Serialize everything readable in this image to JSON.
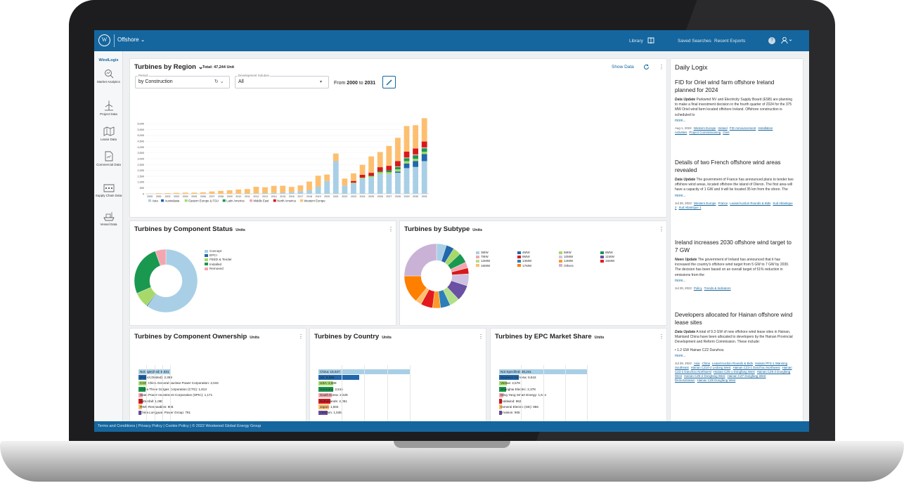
{
  "header": {
    "app_name": "Offshore ⌄",
    "logo": "W",
    "library": "Library",
    "saved_searches": "Saved Searches",
    "recent_exports": "Recent Exports",
    "help": "?"
  },
  "sidebar": {
    "title": "WindLogix",
    "items": [
      {
        "label": "Market Analytics",
        "icon": "search-chart-icon"
      },
      {
        "label": "Project Data",
        "icon": "turbine-icon"
      },
      {
        "label": "Lease Data",
        "icon": "map-icon"
      },
      {
        "label": "Commercial Data",
        "icon": "document-icon"
      },
      {
        "label": "Supply Chain Data",
        "icon": "factory-icon"
      },
      {
        "label": "Vessel Data",
        "icon": "ship-icon"
      }
    ]
  },
  "region_panel": {
    "title": "Turbines by Region ⌄",
    "total": "Total: 47,244 Unit",
    "show_data": "Show Data",
    "period_label": "Period",
    "period_value": "by Construction",
    "dev_label": "Development Solution",
    "dev_value": "All",
    "range_prefix": "From",
    "range_from": "2000",
    "range_to": "2031",
    "range_mid": "to"
  },
  "chart_data": [
    {
      "type": "bar",
      "title": "Turbines by Region",
      "stacked": true,
      "categories": [
        "2000",
        "2001",
        "2002",
        "2003",
        "2004",
        "2005",
        "2006",
        "2007",
        "2008",
        "2009",
        "2010",
        "2011",
        "2012",
        "2013",
        "2014",
        "2015",
        "2016",
        "2017",
        "2018",
        "2019",
        "2020",
        "2021",
        "2022",
        "2023",
        "2024",
        "2025",
        "2026",
        "2027",
        "2028",
        "2029",
        "2030",
        "2031"
      ],
      "ylim": [
        0,
        6500
      ],
      "yticks": [
        "0",
        "500",
        "1,000",
        "1,500",
        "2,000",
        "2,500",
        "3,000",
        "3,500",
        "4,000",
        "4,500",
        "5,000",
        "5,500",
        "6,000"
      ],
      "legend_position": "bottom",
      "series": [
        {
          "name": "Asia",
          "color": "#a8cfe6",
          "values": [
            0,
            0,
            0,
            0,
            0,
            0,
            0,
            0,
            0,
            0,
            20,
            30,
            40,
            60,
            80,
            90,
            140,
            220,
            300,
            600,
            1100,
            2800,
            700,
            900,
            1300,
            1400,
            1700,
            1700,
            1800,
            2200,
            2300,
            2800
          ]
        },
        {
          "name": "Australasia",
          "color": "#2167ac",
          "values": [
            0,
            0,
            0,
            0,
            0,
            0,
            0,
            0,
            0,
            0,
            0,
            0,
            0,
            0,
            0,
            0,
            0,
            0,
            0,
            0,
            0,
            0,
            0,
            0,
            0,
            0,
            0,
            0,
            100,
            400,
            500,
            600
          ]
        },
        {
          "name": "Eastern Europe & FSU",
          "color": "#a6d96a",
          "values": [
            0,
            0,
            0,
            0,
            0,
            0,
            0,
            0,
            0,
            0,
            0,
            0,
            0,
            0,
            0,
            0,
            0,
            0,
            0,
            0,
            0,
            0,
            0,
            50,
            80,
            100,
            150,
            150,
            200,
            200,
            200,
            200
          ]
        },
        {
          "name": "Latin America",
          "color": "#1a9850",
          "values": [
            0,
            0,
            0,
            0,
            0,
            0,
            0,
            0,
            0,
            0,
            0,
            0,
            0,
            0,
            0,
            0,
            0,
            0,
            0,
            0,
            0,
            0,
            0,
            0,
            0,
            50,
            80,
            150,
            200,
            250,
            300,
            300
          ]
        },
        {
          "name": "Middle East",
          "color": "#f4a6b0",
          "values": [
            0,
            0,
            0,
            0,
            0,
            0,
            0,
            0,
            0,
            0,
            0,
            0,
            0,
            0,
            0,
            0,
            0,
            0,
            0,
            0,
            0,
            0,
            0,
            0,
            0,
            0,
            0,
            0,
            50,
            60,
            80,
            80
          ]
        },
        {
          "name": "North America",
          "color": "#d7191c",
          "values": [
            0,
            0,
            0,
            0,
            0,
            0,
            0,
            0,
            0,
            0,
            0,
            0,
            0,
            0,
            0,
            0,
            0,
            0,
            0,
            0,
            0,
            0,
            0,
            150,
            250,
            250,
            350,
            400,
            450,
            500,
            500,
            500
          ]
        },
        {
          "name": "Western Europe",
          "color": "#fdbf6f",
          "values": [
            10,
            50,
            60,
            80,
            100,
            100,
            120,
            200,
            250,
            300,
            350,
            380,
            560,
            500,
            600,
            600,
            450,
            500,
            750,
            950,
            550,
            650,
            600,
            650,
            850,
            1400,
            1300,
            1700,
            2000,
            2200,
            2000,
            2000
          ]
        }
      ]
    },
    {
      "type": "pie",
      "title": "Turbines by Component Status",
      "labels": [
        "Concept",
        "EPCI",
        "FEED & Tender",
        "Installed",
        "Removed"
      ],
      "values": [
        60,
        0.5,
        8,
        26,
        5.5
      ],
      "colors": [
        "#a8cfe6",
        "#2167ac",
        "#a6d96a",
        "#1a9850",
        "#f4a6b0"
      ]
    },
    {
      "type": "pie",
      "title": "Turbines by Subtype",
      "labels": [
        "3MW",
        "4MW",
        "5MW",
        "6MW",
        "7MW",
        "8MW",
        "10MW",
        "11MW",
        "12MW",
        "13MW",
        "14MW",
        "15MW",
        "16MW",
        "17MW",
        "Others"
      ],
      "values": [
        5,
        4,
        4,
        5,
        3,
        3,
        6,
        8,
        5,
        5,
        4,
        6,
        3,
        14,
        25
      ],
      "colors": [
        "#a8cfe6",
        "#2167ac",
        "#a6d96a",
        "#1a9850",
        "#f4a6b0",
        "#d7191c",
        "#cfc2e0",
        "#6a51a3",
        "#b2df8a",
        "#2c7fb8",
        "#fb9a29",
        "#e31a1c",
        "#fdbf6f",
        "#ff7f00",
        "#cab2d6"
      ]
    },
    {
      "type": "bar",
      "orientation": "horizontal",
      "title": "Turbines by Component Ownership",
      "categories": [
        "Not Specified",
        "Ørsted (Orsted)",
        "CGN China General Nuclear Power Corporation",
        "China Three Gorges Corporation (CTG)",
        "State Power Investment Corporation (SPIC)",
        "Vattenfall",
        "RWE Renewables",
        "China Longyuan Power Group"
      ],
      "values": [
        8531,
        2368,
        2044,
        1813,
        1171,
        1080,
        966,
        791
      ]
    },
    {
      "type": "bar",
      "orientation": "horizontal",
      "title": "Turbines by Country",
      "categories": [
        "China",
        "UK",
        "USA",
        "Germany",
        "South Korea",
        "Netherlands",
        "Japan",
        "Vietnam"
      ],
      "values": [
        15647,
        6956,
        2538,
        2515,
        2229,
        2051,
        1804,
        1535
      ]
    },
    {
      "type": "bar",
      "orientation": "horizontal",
      "title": "Turbines by EPC Market Share",
      "categories": [
        "Not Specified",
        "Siemens Gamesa",
        "Vestas",
        "Shanghai Electric",
        "Ming Yang Smart Energy",
        "Goldwind",
        "General Electric (GE)",
        "Envision"
      ],
      "values": [
        29241,
        6516,
        2578,
        2378,
        1514,
        962,
        956,
        905
      ]
    }
  ],
  "status_legend": [
    "Concept",
    "EPCI",
    "FEED & Tender",
    "Installed",
    "Removed"
  ],
  "subtype_legend": [
    "3MW",
    "4MW",
    "5MW",
    "6MW",
    "7MW",
    "8MW",
    "10MW",
    "11MW",
    "12MW",
    "13MW",
    "14MW",
    "15MW",
    "16MW",
    "17MW",
    "Others"
  ],
  "ownership_labels": [
    "Not Specified: 8,531",
    "Ørsted (Orsted): 2,368",
    "CGN China General Nuclear Power Corporation: 2,044",
    "China Three Gorges Corporation (CTG): 1,813",
    "State Power Investment Corporation (SPIC): 1,171",
    "Vattenfall: 1,080",
    "RWE Renewables: 966",
    "China Longyuan Power Group: 791"
  ],
  "country_labels": [
    "China: 15,647",
    "UK: 6,956",
    "USA: 2,538",
    "Germany: 2,515",
    "South Korea: 2,229",
    "Netherlands: 2,051",
    "Japan: 1,804",
    "Vietnam: 1,535"
  ],
  "epc_labels": [
    "Not Specified: 29,241",
    "Siemens Gamesa: 6,516",
    "Vestas: 2,578",
    "Shanghai Electric: 2,378",
    "Ming Yang Smart Energy: 1,514",
    "Goldwind: 962",
    "General Electric (GE): 956",
    "Envision: 905"
  ],
  "panels": {
    "status_title": "Turbines by Component Status",
    "subtype_title": "Turbines by Subtype",
    "ownership_title": "Turbines by Component Ownership",
    "country_title": "Turbines by Country",
    "epc_title": "Turbines by EPC Market Share",
    "units": "Units"
  },
  "daily": {
    "title": "Daily Logix",
    "articles": [
      {
        "headline": "FID for Oriel wind farm offshore Ireland planned for 2024",
        "kind": "Data Update",
        "body": "Parkwind NV and Electricity Supply Board (ESB) are planning to make a final investment decision in the fourth quarter of 2024 for the 375 MW Oriel wind farm located offshore Ireland. Offshore construction is scheduled to",
        "more": "more...",
        "date": "Aug 1, 2022",
        "tags": [
          "Western Europe",
          "Ireland",
          "FID Announcement",
          "Installation Activities",
          "Project Commissioning",
          "Oriel"
        ]
      },
      {
        "headline": "Details of two French offshore wind areas revealed",
        "kind": "Data Update",
        "body": "The government of France has announced plans to tender two offshore wind areas, located offshore the island of Oleron. The first area will have a capacity of 1 GW and it will be located 35 km from the shore. The",
        "more": "more...",
        "date": "Jul 29, 2022",
        "tags": [
          "Western Europe",
          "France",
          "Lease/Auction Rounds & Bids",
          "Sud Atlantique 2",
          "Sud Atlantique 1"
        ]
      },
      {
        "headline": "Ireland increases 2030 offshore wind target to 7 GW",
        "kind": "News Update",
        "body": "The government of Ireland has announced that it has increased the country's offshore wind target from 5 GW to 7 GW by 2030. The decision has been based on an overall target of 51% reduction in emissions from the",
        "more": "more...",
        "date": "Jul 29, 2022",
        "tags": [
          "Policy",
          "Trends & Indicators"
        ]
      },
      {
        "headline": "Developers allocated for Hainan offshore wind lease sites",
        "kind": "Data Update",
        "body": "A total of 9.3 GW of new offshore wind lease sites in Hainan, Mainland China have been allocated to developers by the Hainan Provincial Development and Reform Commission. These include:",
        "bullet": "• 1.2 GW Hainan CZ2 Danzhou",
        "more": "more...",
        "date": "Jul 29, 2022",
        "tags": [
          "Asia",
          "China",
          "Lease/Auction Rounds & Bids",
          "Hainan PFS-1 Wanning Southeast",
          "Hainan CZ10-2 Ledong West",
          "Hainan CZ3-1 Danzhou Northwest",
          "Hainan CZ3-2 Danzhou Northwest",
          "Hainan CZ5-1 Dongfang West",
          "Hainan CZ5-2 Dongfang West",
          "Hainan CZ6-2 Dongfang West",
          "Hainan CZ7 Dongfang West Demonstration",
          "Hainan CZ8 Dongfang West"
        ]
      }
    ]
  },
  "footer": {
    "text": "Terms and Conditions  |  Privacy Policy  |  Cookie Policy  |  © 2022 Westwood Global Energy Group"
  }
}
